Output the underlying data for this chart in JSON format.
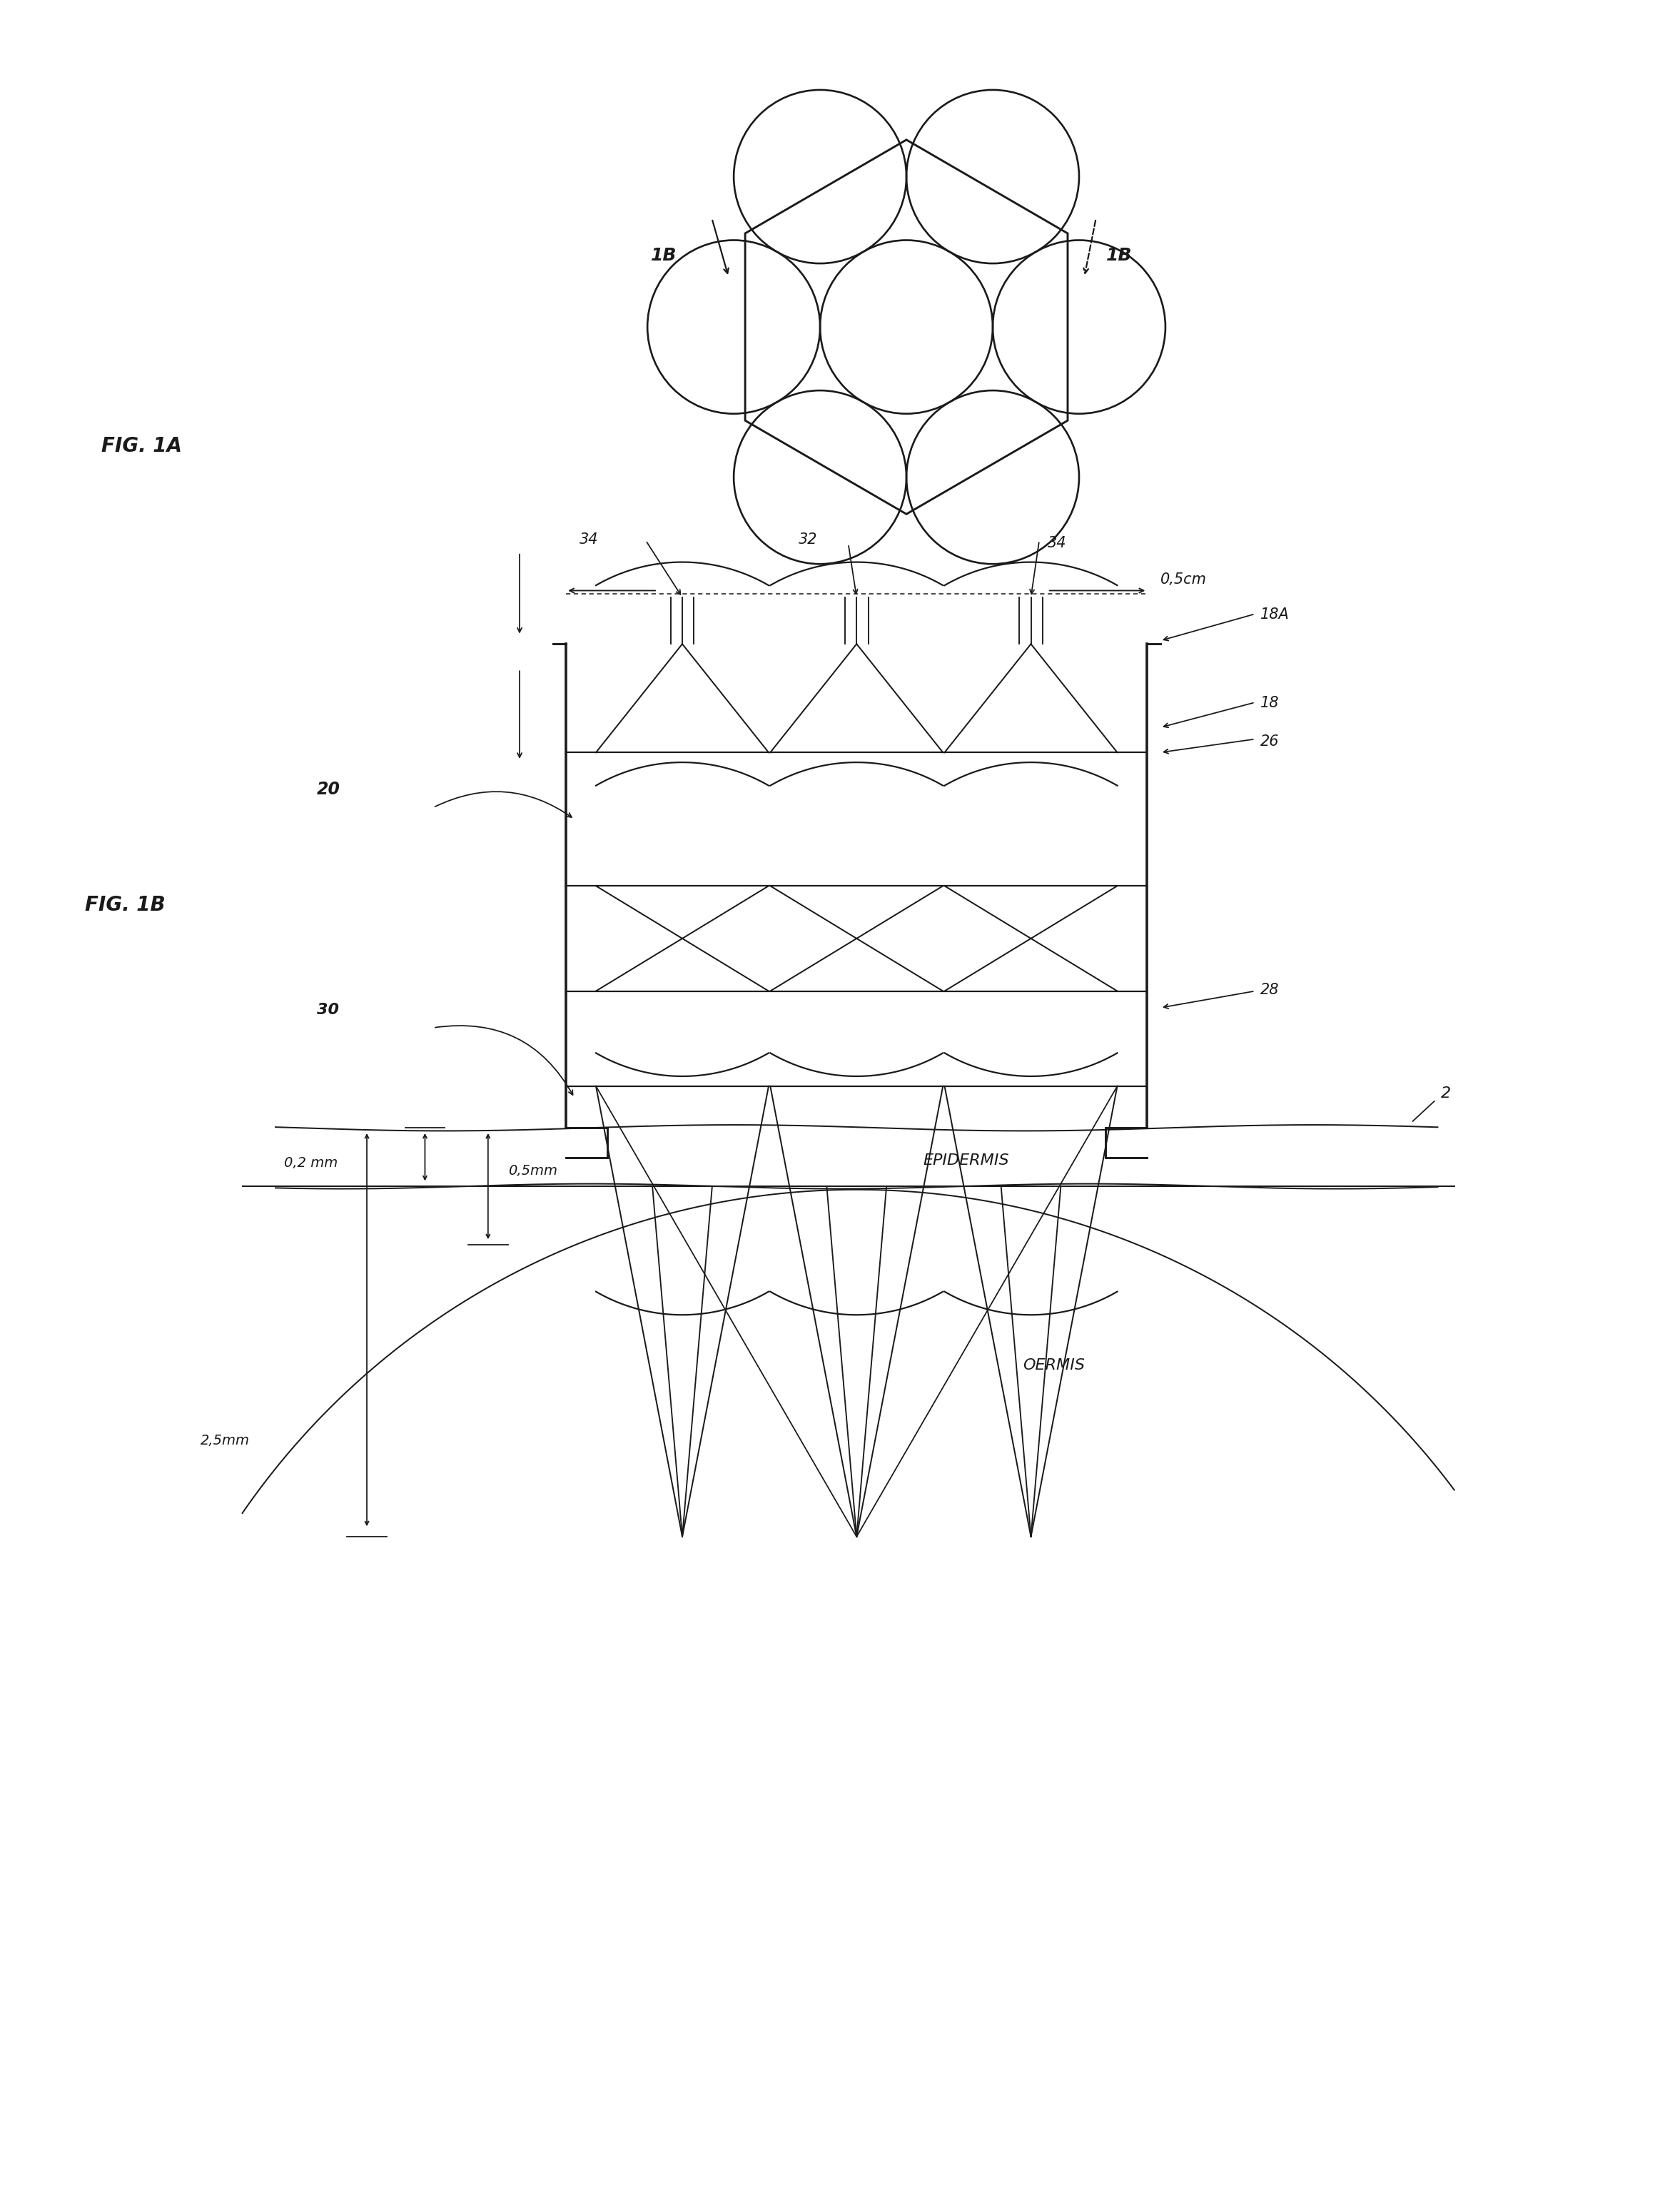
{
  "bg_color": "#ffffff",
  "line_color": "#1a1a1a",
  "fig_width": 23.54,
  "fig_height": 30.67,
  "fig1a_label": "FIG. 1A",
  "fig1b_label": "FIG. 1B",
  "label_18A": "18A",
  "label_18": "18",
  "label_20": "20",
  "label_26": "26",
  "label_28": "28",
  "label_30": "30",
  "label_32": "32",
  "label_34a": "34",
  "label_34b": "34",
  "label_2": "2",
  "label_1B_left": "1B",
  "label_1B_right": "1B",
  "label_05cm": "0,5cm",
  "label_02mm": "0,2 mm",
  "label_05mm": "0,5mm",
  "label_25mm": "2,5mm",
  "label_epidermis": "EPIDERMIS",
  "label_dermis": "DERMIS"
}
